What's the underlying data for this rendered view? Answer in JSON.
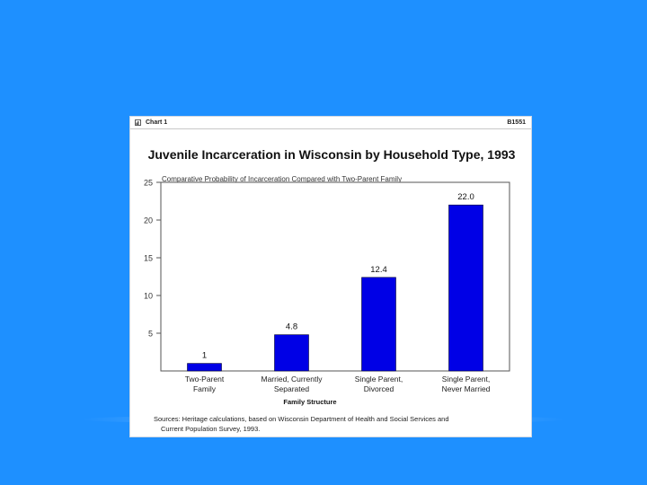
{
  "header": {
    "label": "Chart 1",
    "code": "B1551"
  },
  "chart_data": {
    "type": "bar",
    "title": "Juvenile Incarceration in Wisconsin by Household Type, 1993",
    "subtitle": "Comparative Probability of Incarceration Compared with Two-Parent Family",
    "xlabel": "Family Structure",
    "ylabel": "",
    "categories": [
      [
        "Two-Parent",
        "Family"
      ],
      [
        "Married, Currently",
        "Separated"
      ],
      [
        "Single Parent,",
        "Divorced"
      ],
      [
        "Single Parent,",
        "Never Married"
      ]
    ],
    "values": [
      1,
      4.8,
      12.4,
      22.0
    ],
    "value_labels": [
      "1",
      "4.8",
      "12.4",
      "22.0"
    ],
    "ylim": [
      0,
      25
    ],
    "yticks": [
      5,
      10,
      15,
      20,
      25
    ],
    "bar_color": "#0000e6",
    "grid": false
  },
  "sources": [
    "Sources: Heritage calculations, based on Wisconsin Department of Health and Social Services and",
    "Current Population Survey, 1993."
  ],
  "colors": {
    "background": "#1e90ff",
    "card": "#ffffff"
  }
}
